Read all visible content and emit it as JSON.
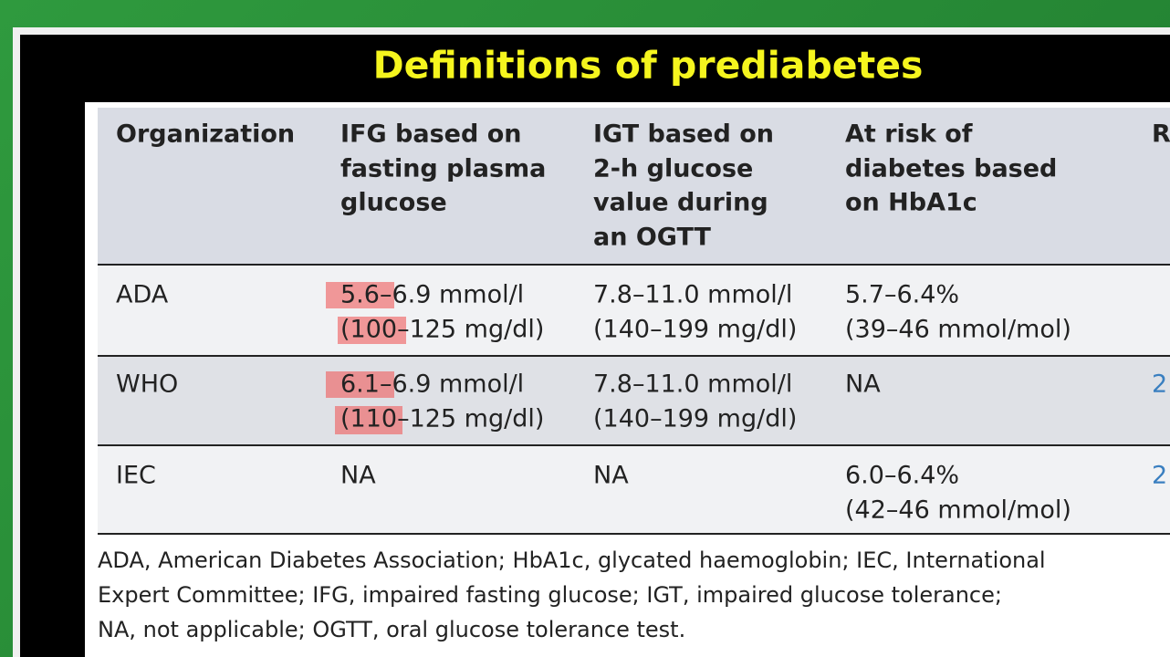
{
  "title": "Definitions of prediabetes",
  "table": {
    "header": [
      [
        "Organization"
      ],
      [
        "IFG based on",
        "fasting plasma",
        "glucose"
      ],
      [
        "IGT based on",
        "2-h glucose",
        "value during",
        "an OGTT"
      ],
      [
        "At risk of",
        "diabetes based",
        "on HbA1c"
      ],
      [
        "R"
      ]
    ],
    "rows": [
      [
        [
          "ADA"
        ],
        [
          "5.6–6.9 mmol/l",
          "(100–125 mg/dl)"
        ],
        [
          "7.8–11.0 mmol/l",
          "(140–199 mg/dl)"
        ],
        [
          "5.7–6.4%",
          "(39–46 mmol/mol)"
        ]
      ],
      [
        [
          "WHO"
        ],
        [
          "6.1–6.9 mmol/l",
          "(110–125 mg/dl)"
        ],
        [
          "7.8–11.0 mmol/l",
          "(140–199 mg/dl)"
        ],
        [
          "NA"
        ],
        [
          "2"
        ]
      ],
      [
        [
          "IEC"
        ],
        [
          "NA"
        ],
        [
          "NA"
        ],
        [
          "6.0–6.4%",
          "(42–46 mmol/mol)"
        ],
        [
          "2"
        ]
      ]
    ]
  },
  "footnote": [
    "ADA, American Diabetes Association; HbA1c, glycated haemoglobin; IEC, International",
    "Expert Committee; IFG, impaired fasting glucose; IGT, impaired glucose tolerance;",
    "NA, not applicable; OGTT, oral glucose tolerance test."
  ]
}
